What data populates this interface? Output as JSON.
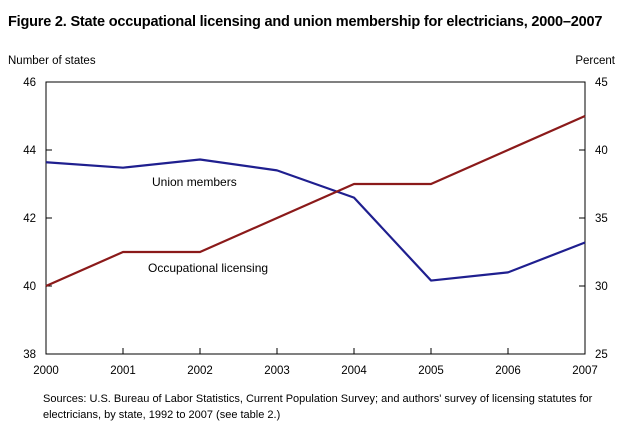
{
  "title": "Figure 2. State occupational licensing and union membership for electricians, 2000–2007",
  "source": "Sources: U.S. Bureau of Labor Statistics, Current Population Survey; and authors' survey of licensing statutes for electricians, by state, 1992 to 2007 (see table 2.)",
  "chart_data": {
    "type": "line",
    "x": [
      2000,
      2001,
      2002,
      2003,
      2004,
      2005,
      2006,
      2007
    ],
    "ylabel_left": "Number of states",
    "ylabel_right": "Percent",
    "ylim_left": [
      38,
      46
    ],
    "yticks_left": [
      38,
      40,
      42,
      44,
      46
    ],
    "ylim_right": [
      25,
      45
    ],
    "yticks_right": [
      25,
      30,
      35,
      40,
      45
    ],
    "grid": false,
    "series": [
      {
        "name": "Union members",
        "axis": "right",
        "color": "#1f1f8f",
        "values": [
          39.1,
          38.7,
          39.3,
          38.5,
          36.5,
          30.4,
          31.0,
          33.2
        ]
      },
      {
        "name": "Occupational licensing",
        "axis": "left",
        "color": "#8b1a1a",
        "values": [
          40,
          41,
          41,
          42,
          43,
          43,
          44,
          45
        ]
      }
    ]
  }
}
